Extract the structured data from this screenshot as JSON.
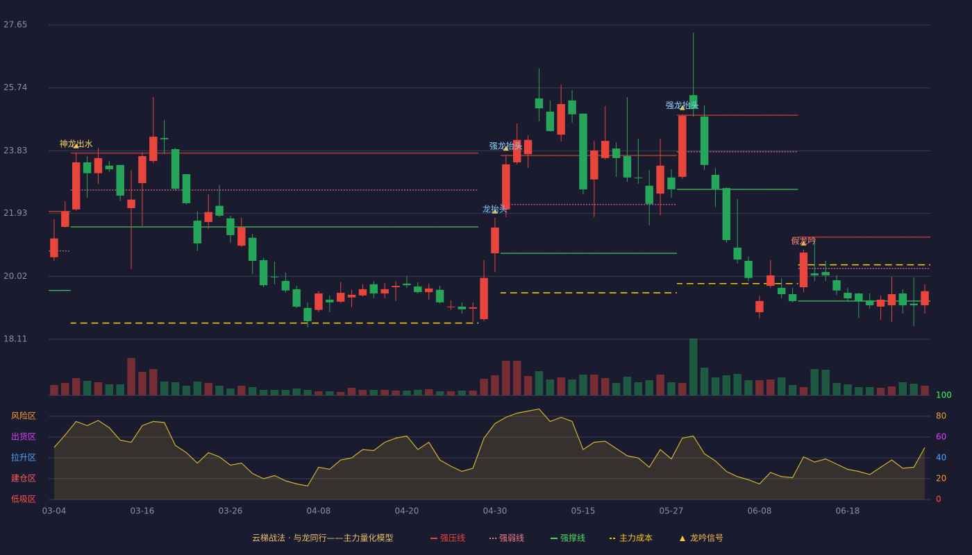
{
  "chart_data": {
    "type": "candlestick",
    "legend_title": "云梯战法 · 与龙同行——主力量化模型",
    "categories": [
      "03-04",
      null,
      null,
      null,
      null,
      null,
      null,
      null,
      "03-16",
      null,
      null,
      null,
      null,
      null,
      null,
      null,
      "03-26",
      null,
      null,
      null,
      null,
      null,
      null,
      null,
      "04-08",
      null,
      null,
      null,
      null,
      null,
      null,
      null,
      "04-20",
      null,
      null,
      null,
      null,
      null,
      null,
      null,
      "04-30",
      null,
      null,
      null,
      null,
      null,
      null,
      null,
      "05-15",
      null,
      null,
      null,
      null,
      null,
      null,
      null,
      "05-27",
      null,
      null,
      null,
      null,
      null,
      null,
      null,
      "06-08",
      null,
      null,
      null,
      null,
      null,
      null,
      null,
      "06-18",
      null,
      null,
      null,
      null,
      null,
      null,
      null
    ],
    "ylim": [
      18.11,
      27.65
    ],
    "yticks": [
      18.11,
      20.02,
      21.93,
      23.83,
      25.74,
      27.65
    ],
    "grid": true,
    "up_color": "#e8453c",
    "down_color": "#26a65b",
    "open": [
      20.6,
      21.52,
      22.05,
      23.48,
      23.15,
      23.38,
      23.4,
      22.09,
      22.85,
      23.52,
      24.22,
      23.88,
      23.12,
      21.71,
      21.67,
      22.16,
      21.78,
      20.95,
      21.19,
      20.51,
      20.01,
      19.88,
      19.63,
      19.06,
      19.0,
      19.31,
      19.25,
      19.38,
      19.44,
      19.78,
      19.5,
      19.69,
      19.8,
      19.71,
      19.54,
      19.61,
      19.08,
      19.1,
      19.04,
      18.72,
      20.72,
      22.05,
      23.48,
      23.73,
      25.42,
      25.02,
      24.32,
      25.36,
      24.96,
      22.96,
      23.61,
      23.9,
      23.67,
      23.02,
      22.77,
      22.53,
      23.02,
      23.04,
      25.52,
      24.87,
      23.1,
      22.7,
      20.89,
      20.49,
      18.93,
      19.73,
      19.67,
      19.48,
      19.69,
      20.11,
      20.15,
      19.9,
      19.52,
      19.5,
      19.29,
      19.1,
      19.14,
      19.5,
      19.19,
      19.14
    ],
    "close": [
      21.17,
      21.99,
      23.48,
      23.15,
      23.61,
      23.27,
      22.47,
      22.35,
      23.67,
      24.26,
      24.18,
      22.68,
      22.24,
      21.02,
      21.97,
      21.86,
      21.27,
      21.5,
      20.49,
      19.75,
      19.99,
      19.59,
      19.1,
      18.66,
      19.5,
      19.23,
      19.52,
      19.46,
      19.63,
      19.5,
      19.63,
      19.73,
      19.75,
      19.54,
      19.65,
      19.23,
      19.1,
      19.02,
      19.08,
      19.97,
      21.5,
      23.42,
      24.16,
      24.16,
      25.12,
      24.43,
      25.25,
      24.94,
      22.66,
      23.84,
      24.13,
      23.61,
      23.02,
      23.0,
      22.22,
      23.38,
      22.66,
      24.89,
      25.1,
      23.4,
      22.68,
      21.12,
      20.53,
      19.97,
      19.27,
      20.05,
      19.48,
      19.27,
      20.74,
      20.05,
      20.05,
      19.59,
      19.35,
      19.25,
      19.14,
      19.31,
      19.48,
      19.14,
      19.14,
      19.57
    ],
    "low": [
      20.49,
      21.5,
      22.01,
      22.41,
      22.83,
      23.19,
      22.3,
      20.24,
      21.54,
      23.46,
      23.73,
      22.62,
      22.2,
      20.79,
      21.46,
      21.82,
      21.04,
      20.91,
      20.09,
      19.69,
      19.78,
      19.52,
      19.06,
      18.47,
      18.93,
      18.93,
      19.21,
      19.08,
      19.4,
      19.35,
      19.35,
      19.27,
      19.67,
      19.5,
      19.31,
      19.19,
      19.0,
      18.89,
      18.64,
      18.66,
      20.15,
      21.82,
      23.42,
      23.31,
      24.72,
      24.41,
      24.11,
      24.68,
      22.51,
      21.82,
      23.57,
      23.04,
      22.89,
      22.83,
      21.57,
      21.88,
      22.41,
      22.98,
      24.87,
      23.25,
      22.13,
      21.04,
      20.41,
      19.88,
      18.74,
      19.67,
      19.35,
      19.23,
      19.54,
      19.88,
      19.88,
      19.46,
      19.25,
      18.76,
      19.04,
      18.7,
      18.64,
      18.89,
      18.51,
      18.89
    ],
    "high": [
      21.76,
      22.3,
      23.78,
      23.67,
      23.92,
      23.52,
      23.4,
      23.25,
      23.78,
      25.46,
      24.77,
      23.92,
      23.12,
      21.99,
      22.51,
      22.79,
      21.86,
      21.8,
      21.31,
      20.58,
      20.47,
      20.13,
      19.73,
      19.23,
      19.57,
      19.44,
      19.84,
      19.61,
      19.78,
      19.88,
      19.82,
      19.88,
      20.03,
      19.84,
      19.8,
      19.73,
      19.29,
      19.23,
      19.23,
      20.51,
      21.8,
      23.71,
      24.66,
      24.3,
      26.33,
      25.36,
      25.84,
      25.67,
      24.96,
      24.13,
      25.19,
      24.09,
      25.46,
      24.2,
      23.25,
      24.2,
      23.27,
      24.94,
      27.42,
      25.21,
      23.31,
      22.72,
      22.37,
      20.62,
      19.42,
      20.51,
      19.97,
      19.67,
      20.83,
      21.19,
      20.49,
      20.05,
      19.67,
      19.52,
      19.5,
      19.44,
      20.01,
      19.63,
      19.99,
      19.78
    ],
    "volume": [
      15,
      18,
      25,
      21,
      19,
      16,
      16,
      54,
      34,
      38,
      20,
      19,
      14,
      20,
      18,
      14,
      10,
      14,
      12,
      8,
      8,
      8,
      10,
      8,
      6,
      6,
      5,
      11,
      8,
      8,
      8,
      7,
      7,
      8,
      9,
      6,
      6,
      7,
      7,
      24,
      29,
      50,
      50,
      28,
      35,
      23,
      26,
      23,
      30,
      30,
      25,
      18,
      27,
      19,
      22,
      30,
      19,
      18,
      82,
      40,
      26,
      29,
      31,
      22,
      22,
      23,
      26,
      15,
      12,
      38,
      37,
      18,
      16,
      12,
      12,
      11,
      13,
      19,
      17,
      14
    ],
    "lines": [
      {
        "name": "强压线",
        "color": "#e8453c",
        "dash": "none",
        "values": [
          21.99,
          21.99,
          23.76,
          23.76,
          23.76,
          23.76,
          23.76,
          23.76,
          23.76,
          23.76,
          23.76,
          23.76,
          23.76,
          23.76,
          23.76,
          23.76,
          23.76,
          23.76,
          23.76,
          23.76,
          23.76,
          23.76,
          23.76,
          23.76,
          23.76,
          23.76,
          23.76,
          23.76,
          23.76,
          23.76,
          23.76,
          23.76,
          23.76,
          23.76,
          23.76,
          23.76,
          23.76,
          23.76,
          23.76,
          null,
          null,
          23.69,
          23.69,
          23.69,
          23.69,
          23.69,
          23.69,
          23.69,
          23.69,
          23.69,
          23.69,
          23.69,
          23.69,
          23.69,
          23.69,
          23.69,
          23.69,
          24.91,
          24.91,
          24.91,
          24.91,
          24.91,
          24.91,
          24.91,
          24.91,
          24.91,
          24.91,
          24.91,
          21.21,
          21.21,
          21.21,
          21.21,
          21.21,
          21.21,
          21.21,
          21.21,
          21.21,
          21.21,
          21.21,
          21.21
        ]
      },
      {
        "name": "强弱线",
        "color": "#f07a8a",
        "dash": "2,2",
        "values": [
          20.79,
          20.79,
          22.64,
          22.64,
          22.64,
          22.64,
          22.64,
          22.64,
          22.64,
          22.64,
          22.64,
          22.64,
          22.64,
          22.64,
          22.64,
          22.64,
          22.64,
          22.64,
          22.64,
          22.64,
          22.64,
          22.64,
          22.64,
          22.64,
          22.64,
          22.64,
          22.64,
          22.64,
          22.64,
          22.64,
          22.64,
          22.64,
          22.64,
          22.64,
          22.64,
          22.64,
          22.64,
          22.64,
          22.64,
          null,
          null,
          22.2,
          22.2,
          22.2,
          22.2,
          22.2,
          22.2,
          22.2,
          22.2,
          22.2,
          22.2,
          22.2,
          22.2,
          22.2,
          22.2,
          22.2,
          22.2,
          23.8,
          23.8,
          23.8,
          23.8,
          23.8,
          23.8,
          23.8,
          23.8,
          23.8,
          23.8,
          23.8,
          20.26,
          20.26,
          20.26,
          20.26,
          20.26,
          20.26,
          20.26,
          20.26,
          20.26,
          20.26,
          20.26,
          20.26
        ]
      },
      {
        "name": "强撑线",
        "color": "#4cd964",
        "dash": "none",
        "values": [
          19.59,
          19.59,
          21.52,
          21.52,
          21.52,
          21.52,
          21.52,
          21.52,
          21.52,
          21.52,
          21.52,
          21.52,
          21.52,
          21.52,
          21.52,
          21.52,
          21.52,
          21.52,
          21.52,
          21.52,
          21.52,
          21.52,
          21.52,
          21.52,
          21.52,
          21.52,
          21.52,
          21.52,
          21.52,
          21.52,
          21.52,
          21.52,
          21.52,
          21.52,
          21.52,
          21.52,
          21.52,
          21.52,
          21.52,
          null,
          null,
          20.72,
          20.72,
          20.72,
          20.72,
          20.72,
          20.72,
          20.72,
          20.72,
          20.72,
          20.72,
          20.72,
          20.72,
          20.72,
          20.72,
          20.72,
          20.72,
          22.66,
          22.66,
          22.66,
          22.66,
          22.66,
          22.66,
          22.66,
          22.66,
          22.66,
          22.66,
          22.66,
          19.27,
          19.27,
          19.27,
          19.27,
          19.27,
          19.27,
          19.27,
          19.27,
          19.27,
          19.27,
          19.27,
          19.27
        ]
      },
      {
        "name": "主力成本",
        "color": "#f5c518",
        "dash": "8,6",
        "values": [
          null,
          null,
          18.6,
          18.6,
          18.6,
          18.6,
          18.6,
          18.6,
          18.6,
          18.6,
          18.6,
          18.6,
          18.6,
          18.6,
          18.6,
          18.6,
          18.6,
          18.6,
          18.6,
          18.6,
          18.6,
          18.6,
          18.6,
          18.6,
          18.6,
          18.6,
          18.6,
          18.6,
          18.6,
          18.6,
          18.6,
          18.6,
          18.6,
          18.6,
          18.6,
          18.6,
          18.6,
          18.6,
          18.6,
          null,
          null,
          19.52,
          19.52,
          19.52,
          19.52,
          19.52,
          19.52,
          19.52,
          19.52,
          19.52,
          19.52,
          19.52,
          19.52,
          19.52,
          19.52,
          19.52,
          19.52,
          19.8,
          19.8,
          19.8,
          19.8,
          19.8,
          19.8,
          19.8,
          19.8,
          19.8,
          19.8,
          19.8,
          20.37,
          20.37,
          20.37,
          20.37,
          20.37,
          20.37,
          20.37,
          20.37,
          20.37,
          20.37,
          20.37,
          20.37
        ]
      }
    ],
    "signal_name": "龙吟信号",
    "signal_color": "#f5c242",
    "signals": [
      null,
      null,
      {
        "label": "神龙出水",
        "color": "#f7d36b"
      },
      null,
      null,
      null,
      null,
      null,
      null,
      null,
      null,
      null,
      null,
      null,
      null,
      null,
      null,
      null,
      null,
      null,
      null,
      null,
      null,
      null,
      null,
      null,
      null,
      null,
      null,
      null,
      null,
      null,
      null,
      null,
      null,
      null,
      null,
      null,
      null,
      null,
      {
        "label": "龙抬头",
        "color": "#74c7ff"
      },
      {
        "label": "强龙抬头",
        "color": "#8fd3ff"
      },
      null,
      null,
      null,
      null,
      null,
      null,
      null,
      null,
      null,
      null,
      null,
      null,
      null,
      null,
      null,
      {
        "label": "强龙抬头",
        "color": "#8fd3ff"
      },
      null,
      null,
      null,
      null,
      null,
      null,
      null,
      null,
      null,
      null,
      {
        "label": "假龙吟",
        "color": "#ff8a80"
      },
      null,
      null,
      null,
      null,
      null,
      null,
      null,
      null,
      null,
      null,
      null
    ],
    "indicator": {
      "color": "#d4b430",
      "ylim": [
        0,
        100
      ],
      "yticks": [
        0,
        20,
        40,
        60,
        80,
        100
      ],
      "tick_colors": [
        "#ff4d4d",
        "#ff9933",
        "#4da3ff",
        "#e040fb",
        "#f0a030",
        "#33ff66"
      ],
      "zones": [
        {
          "label": "风险区",
          "value": 80,
          "color": "#f0a030"
        },
        {
          "label": "出货区",
          "value": 60,
          "color": "#e040fb"
        },
        {
          "label": "拉升区",
          "value": 40,
          "color": "#4da3ff"
        },
        {
          "label": "建仓区",
          "value": 20,
          "color": "#ff5a5a"
        },
        {
          "label": "低吸区",
          "value": 0,
          "color": "#ff4d4d"
        }
      ],
      "values": [
        50,
        62,
        75,
        71,
        76,
        69,
        57,
        55,
        71,
        75,
        74,
        52,
        45,
        35,
        45,
        41,
        33,
        35,
        25,
        20,
        23,
        18,
        15,
        13,
        31,
        29,
        38,
        40,
        48,
        47,
        55,
        59,
        61,
        48,
        55,
        38,
        32,
        27,
        30,
        59,
        73,
        79,
        83,
        85,
        87,
        75,
        79,
        75,
        48,
        55,
        56,
        49,
        42,
        40,
        31,
        48,
        39,
        59,
        61,
        44,
        37,
        27,
        22,
        19,
        15,
        26,
        22,
        21,
        41,
        36,
        39,
        34,
        29,
        27,
        24,
        31,
        38,
        30,
        31,
        50
      ]
    }
  }
}
